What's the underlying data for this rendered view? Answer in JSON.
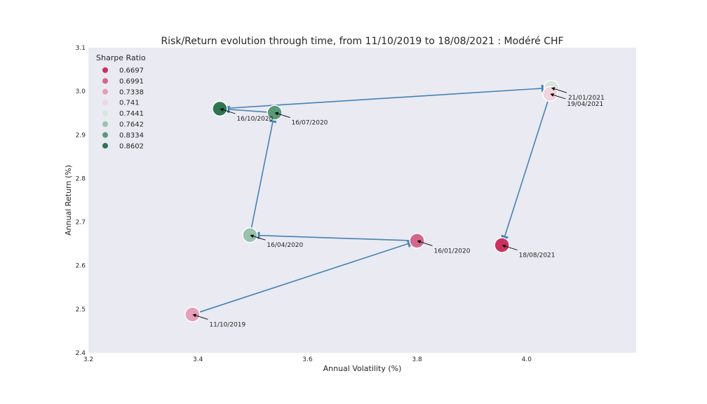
{
  "chart_data": {
    "type": "scatter",
    "title": "Risk/Return evolution through time, from 11/10/2019 to 18/08/2021 : Modéré CHF",
    "xlabel": "Annual Volatility (%)",
    "ylabel": "Annual Return (%)",
    "xlim": [
      3.2,
      4.2
    ],
    "ylim": [
      2.4,
      3.1
    ],
    "xticks": [
      3.2,
      3.4,
      3.6,
      3.8,
      4.0
    ],
    "yticks": [
      2.4,
      2.5,
      2.6,
      2.7,
      2.8,
      2.9,
      3.0,
      3.1
    ],
    "grid": false,
    "legend": {
      "title": "Sharpe Ratio",
      "placement": "upper-left",
      "entries": [
        {
          "label": "0.6697",
          "color": "#c9325f"
        },
        {
          "label": "0.6991",
          "color": "#d1688c"
        },
        {
          "label": "0.7338",
          "color": "#e3a0b8"
        },
        {
          "label": "0.741",
          "color": "#f0d5df"
        },
        {
          "label": "0.7441",
          "color": "#d9e4dd"
        },
        {
          "label": "0.7642",
          "color": "#98c2ab"
        },
        {
          "label": "0.8334",
          "color": "#5a9a78"
        },
        {
          "label": "0.8602",
          "color": "#2e7553"
        }
      ]
    },
    "points": [
      {
        "date": "11/10/2019",
        "volatility": 3.39,
        "return": 2.488,
        "sharpe": "0.7338",
        "color": "#e3a0b8"
      },
      {
        "date": "16/01/2020",
        "volatility": 3.8,
        "return": 2.657,
        "sharpe": "0.6991",
        "color": "#d1688c"
      },
      {
        "date": "16/04/2020",
        "volatility": 3.495,
        "return": 2.67,
        "sharpe": "0.7642",
        "color": "#98c2ab"
      },
      {
        "date": "16/07/2020",
        "volatility": 3.54,
        "return": 2.951,
        "sharpe": "0.8334",
        "color": "#5a9a78"
      },
      {
        "date": "16/10/2020",
        "volatility": 3.44,
        "return": 2.96,
        "sharpe": "0.8602",
        "color": "#2e7553"
      },
      {
        "date": "21/01/2021",
        "volatility": 4.045,
        "return": 3.008,
        "sharpe": "0.7441",
        "color": "#d9e4dd"
      },
      {
        "date": "19/04/2021",
        "volatility": 4.043,
        "return": 2.994,
        "sharpe": "0.741",
        "color": "#f0d5df"
      },
      {
        "date": "18/08/2021",
        "volatility": 3.955,
        "return": 2.647,
        "sharpe": "0.6697",
        "color": "#c9325f"
      }
    ],
    "arrow_color": "#4682b4",
    "plot_background": "#eaeaf2"
  }
}
